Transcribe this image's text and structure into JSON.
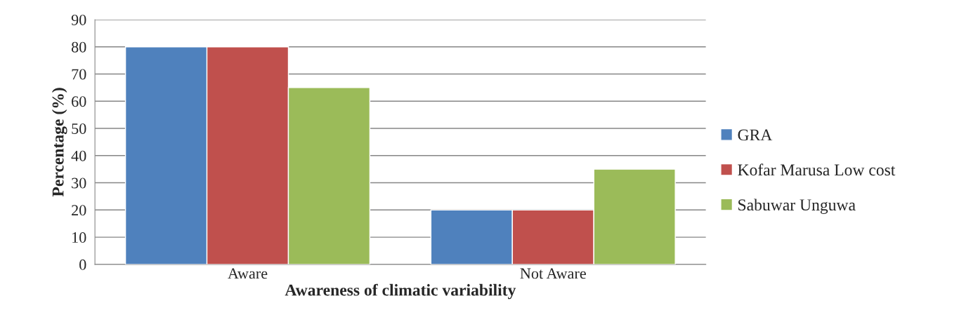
{
  "chart_data": {
    "type": "bar",
    "xlabel": "Awareness of climatic variability",
    "ylabel": "Percentage (%)",
    "categories": [
      "Aware",
      "Not Aware"
    ],
    "series": [
      {
        "name": "GRA",
        "color": "#4f81bd",
        "values": [
          80,
          20
        ]
      },
      {
        "name": "Kofar Marusa Low cost",
        "color": "#c0504d",
        "values": [
          80,
          20
        ]
      },
      {
        "name": "Sabuwar Unguwa",
        "color": "#9bbb59",
        "values": [
          65,
          35
        ]
      }
    ],
    "ylim": [
      0,
      90
    ],
    "yticks": [
      0,
      10,
      20,
      30,
      40,
      50,
      60,
      70,
      80,
      90
    ],
    "grid": "y",
    "legend": "right"
  }
}
